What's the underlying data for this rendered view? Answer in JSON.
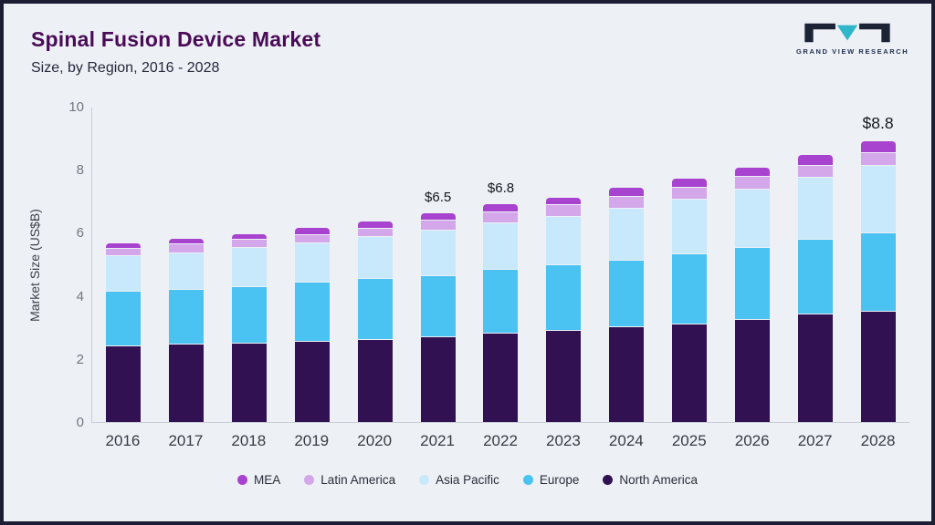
{
  "header": {
    "title": "Spinal Fusion Device Market",
    "subtitle": "Size, by Region, 2016 - 2028",
    "logo_text": "GRAND VIEW RESEARCH"
  },
  "colors": {
    "background": "#edf1f6",
    "frame_border": "#1d1d33",
    "title": "#4a0b57",
    "axis": "#c8ccd6",
    "logo_dark": "#1b2334",
    "logo_teal": "#2fb6c9"
  },
  "chart_data": {
    "type": "bar",
    "stacked": true,
    "title": "Spinal Fusion Device Market Size, by Region, 2016 - 2028",
    "xlabel": "",
    "ylabel": "Market Size (US$B)",
    "ylim": [
      0,
      10
    ],
    "yticks": [
      0,
      2,
      4,
      6,
      8,
      10
    ],
    "grid": false,
    "legend_position": "bottom",
    "categories": [
      "2016",
      "2017",
      "2018",
      "2019",
      "2020",
      "2021",
      "2022",
      "2023",
      "2024",
      "2025",
      "2026",
      "2027",
      "2028"
    ],
    "series": [
      {
        "name": "North America",
        "color": "#311152",
        "values": [
          2.4,
          2.45,
          2.5,
          2.55,
          2.6,
          2.7,
          2.8,
          2.9,
          3.0,
          3.1,
          3.25,
          3.4,
          3.5
        ]
      },
      {
        "name": "Europe",
        "color": "#4ac2f2",
        "values": [
          1.7,
          1.7,
          1.75,
          1.85,
          1.9,
          1.9,
          2.0,
          2.05,
          2.1,
          2.2,
          2.25,
          2.35,
          2.45
        ]
      },
      {
        "name": "Asia Pacific",
        "color": "#c8e8fb",
        "values": [
          1.1,
          1.15,
          1.2,
          1.2,
          1.3,
          1.4,
          1.45,
          1.5,
          1.6,
          1.7,
          1.8,
          1.95,
          2.1
        ]
      },
      {
        "name": "Latin America",
        "color": "#d4a6ea",
        "values": [
          0.2,
          0.25,
          0.25,
          0.25,
          0.25,
          0.3,
          0.3,
          0.35,
          0.35,
          0.35,
          0.4,
          0.35,
          0.4
        ]
      },
      {
        "name": "MEA",
        "color": "#a843cf",
        "values": [
          0.15,
          0.15,
          0.15,
          0.2,
          0.2,
          0.2,
          0.25,
          0.2,
          0.25,
          0.25,
          0.25,
          0.3,
          0.35
        ]
      }
    ],
    "totals": [
      5.55,
      5.7,
      5.85,
      6.05,
      6.25,
      6.5,
      6.8,
      7.0,
      7.3,
      7.6,
      7.95,
      8.35,
      8.8
    ],
    "bar_labels": [
      {
        "category": "2021",
        "text": "$6.5"
      },
      {
        "category": "2022",
        "text": "$6.8"
      },
      {
        "category": "2028",
        "text": "$8.8",
        "emphasis": true
      }
    ]
  }
}
